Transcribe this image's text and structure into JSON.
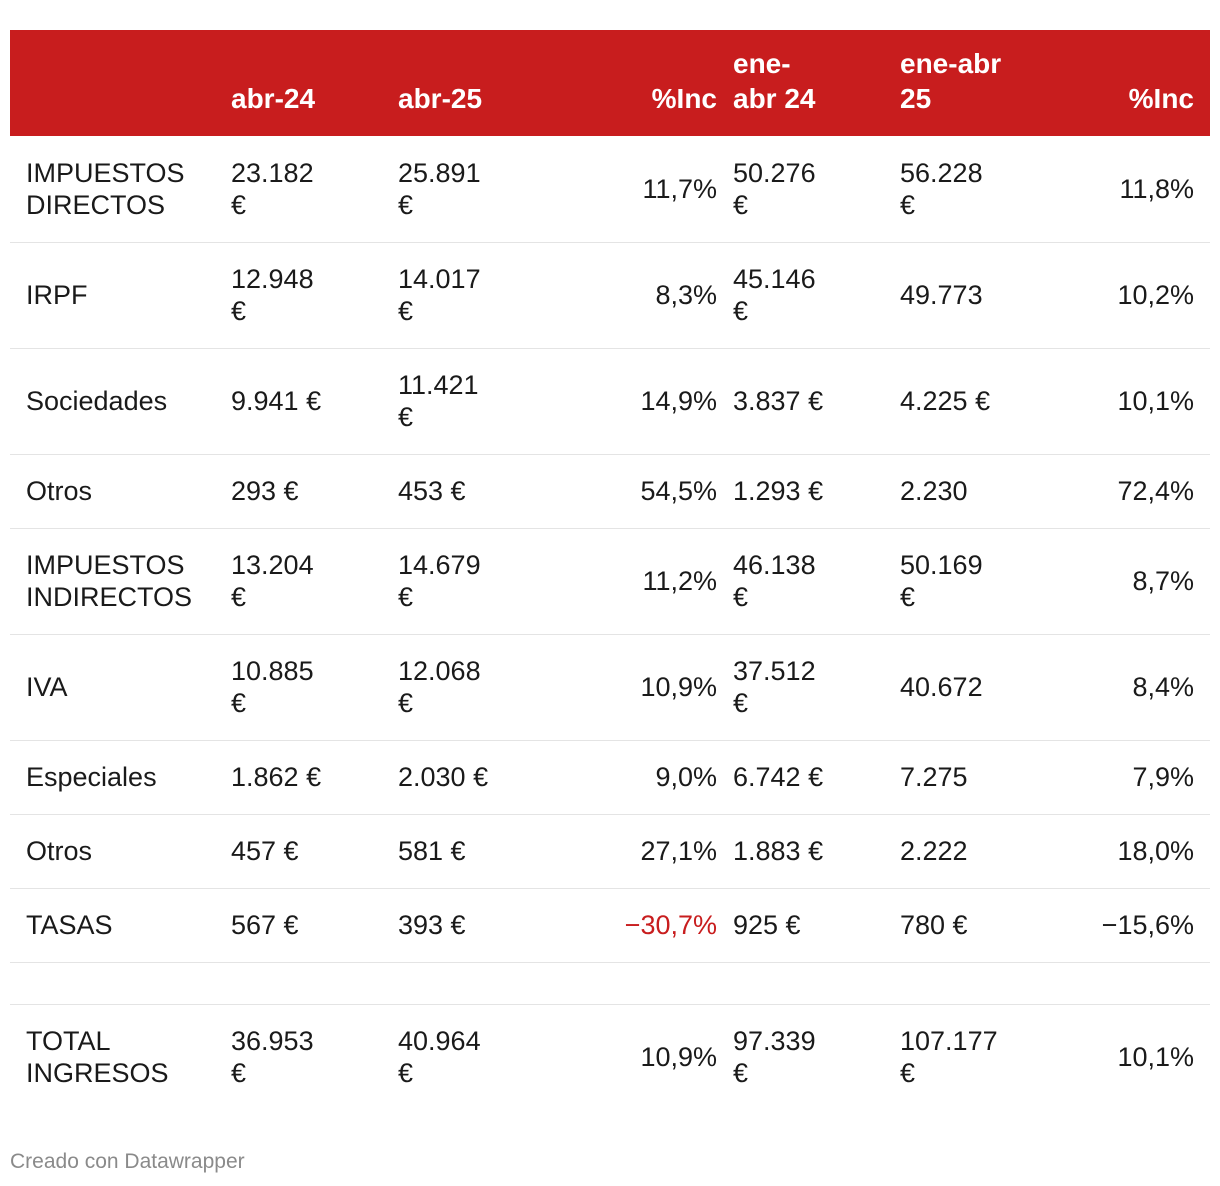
{
  "header": {
    "col0": "",
    "col1": "abr-24",
    "col2": "abr-25",
    "col3": "%Inc",
    "col4_line1": "ene-",
    "col4_line2": "abr 24",
    "col5_line1": "ene-abr",
    "col5_line2": "25",
    "col6": "%Inc"
  },
  "rows": [
    {
      "label_line1": "IMPUESTOS",
      "label_line2": "DIRECTOS",
      "abr24_line1": "23.182",
      "abr24_line2": "€",
      "abr25_line1": "25.891",
      "abr25_line2": "€",
      "inc1": "11,7%",
      "eneabr24_line1": "50.276",
      "eneabr24_line2": "€",
      "eneabr25_line1": "56.228",
      "eneabr25_line2": "€",
      "inc2": "11,8%"
    },
    {
      "label": "IRPF",
      "abr24_line1": "12.948",
      "abr24_line2": "€",
      "abr25_line1": "14.017",
      "abr25_line2": "€",
      "inc1": "8,3%",
      "eneabr24_line1": "45.146",
      "eneabr24_line2": "€",
      "eneabr25": "49.773",
      "inc2": "10,2%"
    },
    {
      "label": "Sociedades",
      "abr24": "9.941 €",
      "abr25_line1": "11.421",
      "abr25_line2": "€",
      "inc1": "14,9%",
      "eneabr24": "3.837 €",
      "eneabr25": "4.225 €",
      "inc2": "10,1%"
    },
    {
      "label": "Otros",
      "abr24": "293 €",
      "abr25": "453 €",
      "inc1": "54,5%",
      "eneabr24": "1.293 €",
      "eneabr25": "2.230",
      "inc2": "72,4%"
    },
    {
      "label_line1": "IMPUESTOS",
      "label_line2": "INDIRECTOS",
      "abr24_line1": "13.204",
      "abr24_line2": "€",
      "abr25_line1": "14.679",
      "abr25_line2": "€",
      "inc1": "11,2%",
      "eneabr24_line1": "46.138",
      "eneabr24_line2": "€",
      "eneabr25_line1": "50.169",
      "eneabr25_line2": "€",
      "inc2": "8,7%"
    },
    {
      "label": "IVA",
      "abr24_line1": "10.885",
      "abr24_line2": "€",
      "abr25_line1": "12.068",
      "abr25_line2": "€",
      "inc1": "10,9%",
      "eneabr24_line1": "37.512",
      "eneabr24_line2": "€",
      "eneabr25": "40.672",
      "inc2": "8,4%"
    },
    {
      "label": "Especiales",
      "abr24": "1.862 €",
      "abr25": "2.030 €",
      "inc1": "9,0%",
      "eneabr24": "6.742 €",
      "eneabr25": "7.275",
      "inc2": "7,9%"
    },
    {
      "label": "Otros",
      "abr24": "457 €",
      "abr25": "581 €",
      "inc1": "27,1%",
      "eneabr24": "1.883 €",
      "eneabr25": "2.222",
      "inc2": "18,0%"
    },
    {
      "label": "TASAS",
      "abr24": "567 €",
      "abr25": "393 €",
      "inc1": "−30,7%",
      "eneabr24": "925 €",
      "eneabr25": "780 €",
      "inc2": "−15,6%"
    },
    {
      "label_line1": "TOTAL",
      "label_line2": "INGRESOS",
      "abr24_line1": "36.953",
      "abr24_line2": "€",
      "abr25_line1": "40.964",
      "abr25_line2": "€",
      "inc1": "10,9%",
      "eneabr24_line1": "97.339",
      "eneabr24_line2": "€",
      "eneabr25_line1": "107.177",
      "eneabr25_line2": "€",
      "inc2": "10,1%"
    }
  ],
  "colors": {
    "header_bg": "#c81d1e",
    "negative_highlight": "#c81d1e"
  },
  "footer": {
    "credit": "Creado con Datawrapper"
  }
}
